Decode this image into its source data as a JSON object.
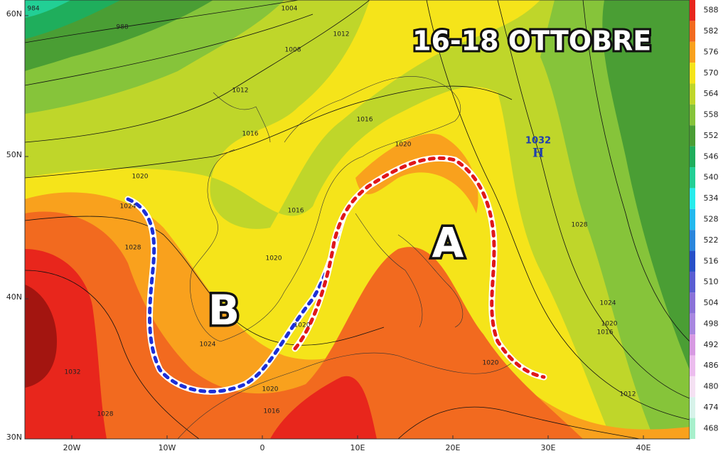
{
  "title": "16-18 OTTOBRE",
  "labels": {
    "high": "H",
    "high_value": "1032",
    "region_a": "A",
    "region_b": "B"
  },
  "lat_labels": [
    "60N",
    "50N",
    "40N",
    "30N"
  ],
  "lon_labels": [
    "20W",
    "10W",
    "0",
    "10E",
    "20E",
    "30E",
    "40E"
  ],
  "colorbar": {
    "values": [
      588,
      582,
      576,
      570,
      564,
      558,
      552,
      546,
      540,
      534,
      528,
      522,
      516,
      510,
      504,
      498,
      492,
      486,
      480,
      474,
      468
    ],
    "colors": [
      "#e8261c",
      "#f26a1f",
      "#f9a11d",
      "#f5e41a",
      "#bfd62a",
      "#86c43a",
      "#4a9e34",
      "#1fae5c",
      "#22cf95",
      "#27ecec",
      "#23b9ee",
      "#2a86dc",
      "#2750c8",
      "#5a5ed2",
      "#8a72d8",
      "#a888e0",
      "#d79ae2",
      "#ecbdee",
      "#f5e1f3",
      "#d7f3ea",
      "#a8f0cc"
    ]
  },
  "isobar_labels": [
    "984",
    "988",
    "1004",
    "1008",
    "1012",
    "1012",
    "1016",
    "1016",
    "1020",
    "1024",
    "1028",
    "1016",
    "1020",
    "1020",
    "1024",
    "1020",
    "1016",
    "1032",
    "1028",
    "1028",
    "1024",
    "1020",
    "1016",
    "1020",
    "1012",
    "1020"
  ]
}
